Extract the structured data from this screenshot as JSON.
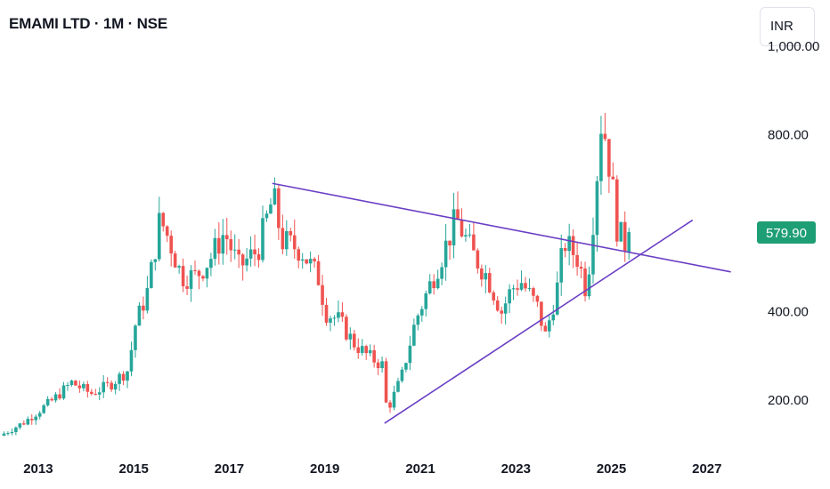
{
  "header": {
    "title": "EMAMI LTD · 1M · NSE",
    "currency": "INR"
  },
  "colors": {
    "up": "#26a69a",
    "down": "#ef5350",
    "trendline": "#6a3fc4",
    "price_tag": "#1e9e74"
  },
  "chart_data": {
    "type": "candlestick",
    "title": "EMAMI LTD · 1M · NSE",
    "xlabel": "",
    "ylabel": "",
    "y_ticks": [
      "200.00",
      "400.00",
      "800.00",
      "1,000.00"
    ],
    "x_ticks": [
      "2013",
      "2015",
      "2017",
      "2019",
      "2021",
      "2023",
      "2025",
      "2027"
    ],
    "xlim": [
      2012.2,
      2027.6
    ],
    "ylim": [
      100,
      1060
    ],
    "last_price": "579.90",
    "trendlines": [
      {
        "from": {
          "x": 2017.9,
          "y": 690
        },
        "to": {
          "x": 2027.5,
          "y": 490
        }
      },
      {
        "from": {
          "x": 2020.25,
          "y": 148
        },
        "to": {
          "x": 2026.7,
          "y": 607
        }
      }
    ],
    "series_anchor_points": [
      [
        2012.2,
        120
      ],
      [
        2012.7,
        150
      ],
      [
        2013.3,
        200
      ],
      [
        2013.7,
        240
      ],
      [
        2014.1,
        215
      ],
      [
        2014.5,
        235
      ],
      [
        2014.9,
        270
      ],
      [
        2015.0,
        360
      ],
      [
        2015.3,
        450
      ],
      [
        2015.55,
        610
      ],
      [
        2015.75,
        560
      ],
      [
        2016.0,
        480
      ],
      [
        2016.3,
        480
      ],
      [
        2016.6,
        520
      ],
      [
        2016.9,
        580
      ],
      [
        2017.2,
        500
      ],
      [
        2017.6,
        540
      ],
      [
        2017.92,
        660
      ],
      [
        2018.1,
        560
      ],
      [
        2018.5,
        540
      ],
      [
        2018.9,
        470
      ],
      [
        2019.0,
        400
      ],
      [
        2019.3,
        380
      ],
      [
        2019.6,
        330
      ],
      [
        2019.9,
        300
      ],
      [
        2020.2,
        280
      ],
      [
        2020.3,
        175
      ],
      [
        2020.6,
        250
      ],
      [
        2020.9,
        380
      ],
      [
        2021.2,
        460
      ],
      [
        2021.5,
        540
      ],
      [
        2021.75,
        610
      ],
      [
        2022.1,
        530
      ],
      [
        2022.4,
        480
      ],
      [
        2022.7,
        400
      ],
      [
        2022.9,
        450
      ],
      [
        2023.1,
        470
      ],
      [
        2023.45,
        410
      ],
      [
        2023.62,
        345
      ],
      [
        2023.9,
        470
      ],
      [
        2024.0,
        560
      ],
      [
        2024.3,
        520
      ],
      [
        2024.48,
        445
      ],
      [
        2024.65,
        650
      ],
      [
        2024.8,
        850
      ],
      [
        2025.0,
        700
      ],
      [
        2025.12,
        590
      ],
      [
        2025.27,
        550
      ],
      [
        2025.38,
        579.9
      ]
    ]
  }
}
